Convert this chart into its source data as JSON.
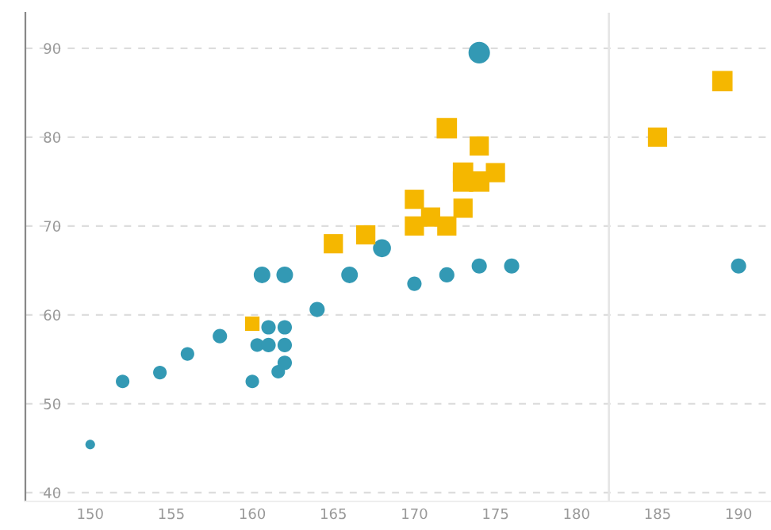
{
  "chart_data": {
    "type": "bubble",
    "xlim": [
      146,
      192
    ],
    "ylim": [
      39,
      94
    ],
    "xticks": [
      150,
      155,
      160,
      165,
      170,
      175,
      180,
      185,
      190
    ],
    "yticks": [
      40,
      50,
      60,
      70,
      80,
      90
    ],
    "grid": "y",
    "ref_lines": [
      {
        "axis": "x",
        "value": 182,
        "color": "#e6e6e6"
      }
    ],
    "series": [
      {
        "color": "#3399b4",
        "marker": "circle",
        "x": [
          150,
          152,
          154.3,
          156,
          158,
          160,
          160.3,
          160.6,
          161,
          161,
          161.6,
          162,
          162,
          162,
          162,
          164,
          166,
          168,
          170,
          172,
          174,
          176,
          190,
          174
        ],
        "values": [
          45.4,
          52.5,
          53.5,
          55.6,
          57.6,
          52.5,
          56.6,
          64.5,
          58.6,
          56.6,
          53.6,
          54.6,
          56.6,
          58.6,
          64.5,
          60.6,
          64.5,
          67.5,
          63.5,
          64.5,
          65.5,
          65.5,
          65.5,
          89.5
        ],
        "sizes": [
          0.2,
          0.4,
          0.4,
          0.4,
          0.45,
          0.4,
          0.4,
          0.6,
          0.45,
          0.45,
          0.4,
          0.45,
          0.45,
          0.45,
          0.6,
          0.5,
          0.6,
          0.7,
          0.45,
          0.5,
          0.5,
          0.5,
          0.5,
          1
        ]
      },
      {
        "color": "#f5b700",
        "marker": "square",
        "x": [
          160,
          165,
          167,
          170,
          170,
          171,
          172,
          172,
          173,
          173,
          173,
          174,
          174,
          175,
          185,
          189
        ],
        "values": [
          59,
          68,
          69,
          73,
          70,
          71,
          70,
          81,
          72,
          76,
          75,
          75,
          79,
          76,
          80,
          86.3
        ],
        "sizes": [
          0.45,
          0.8,
          0.8,
          0.8,
          0.8,
          0.8,
          0.8,
          0.9,
          0.8,
          0.9,
          0.9,
          0.9,
          0.8,
          0.8,
          0.8,
          0.9
        ]
      }
    ]
  }
}
